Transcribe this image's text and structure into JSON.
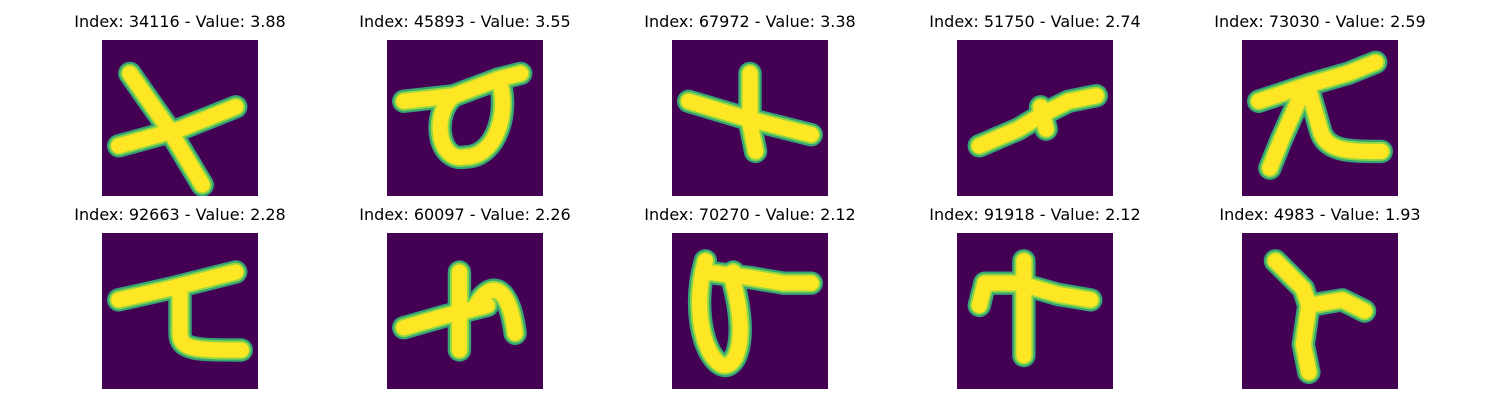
{
  "colors": {
    "background": "#440154",
    "stroke_outer": "#35b779",
    "stroke_mid": "#90d743",
    "stroke_core": "#fde725"
  },
  "panels": [
    {
      "title": "Index: 34116 - Value: 3.88",
      "glyph": "x-cross-icon"
    },
    {
      "title": "Index: 45893 - Value: 3.55",
      "glyph": "loop-with-bar-icon"
    },
    {
      "title": "Index: 67972 - Value: 3.38",
      "glyph": "plus-cross-icon"
    },
    {
      "title": "Index: 51750 - Value: 2.74",
      "glyph": "diagonal-dash-icon"
    },
    {
      "title": "Index: 73030 - Value: 2.59",
      "glyph": "pi-like-icon"
    },
    {
      "title": "Index: 92663 - Value: 2.28",
      "glyph": "z-like-icon"
    },
    {
      "title": "Index: 60097 - Value: 2.26",
      "glyph": "h-like-icon"
    },
    {
      "title": "Index: 70270 - Value: 2.12",
      "glyph": "loop-with-tail-icon"
    },
    {
      "title": "Index: 91918 - Value: 2.12",
      "glyph": "t-like-icon"
    },
    {
      "title": "Index: 4983 - Value: 1.93",
      "glyph": "y-like-icon"
    }
  ]
}
